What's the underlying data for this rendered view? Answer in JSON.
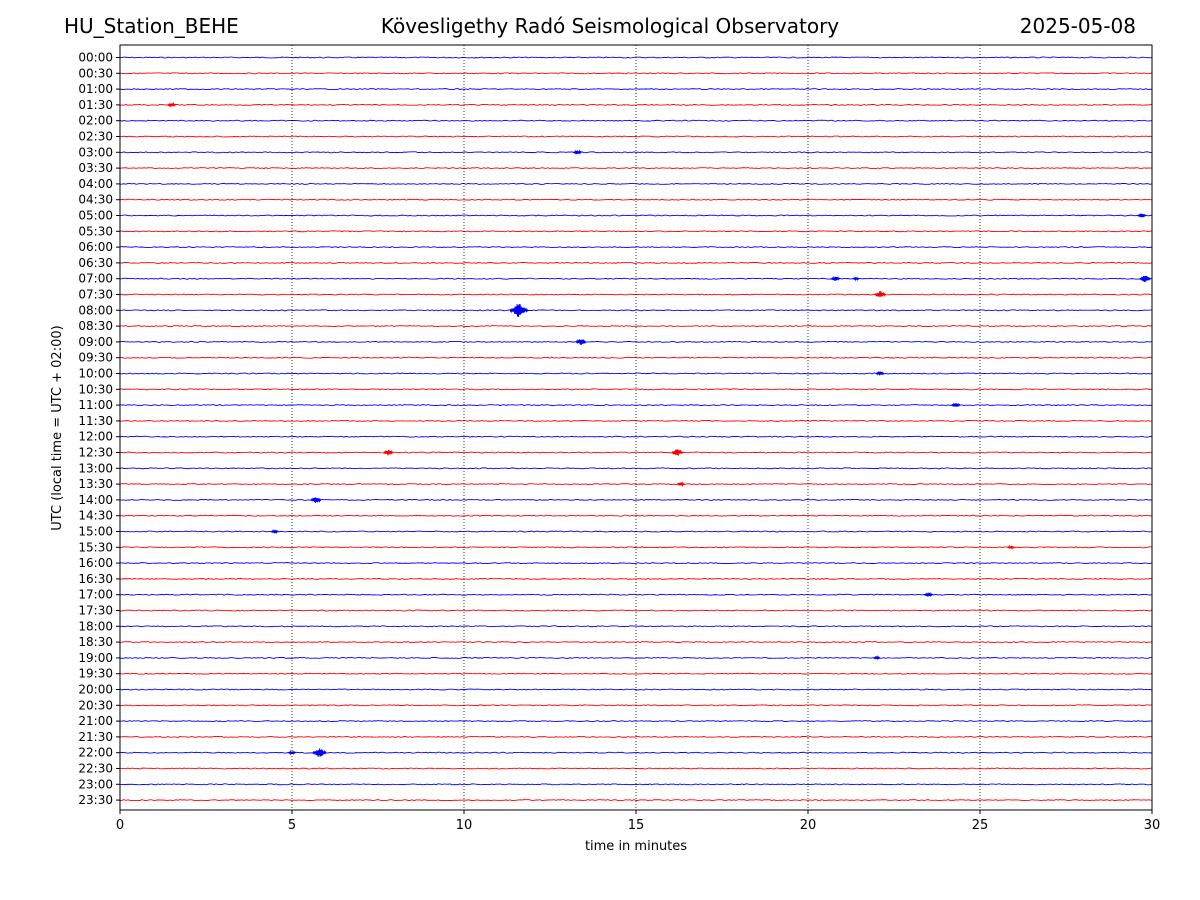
{
  "header": {
    "station": "HU_Station_BEHE",
    "title": "Kövesligethy Radó Seismological Observatory",
    "date": "2025-05-08"
  },
  "chart_data": {
    "type": "line",
    "title": "Kövesligethy Radó Seismological Observatory",
    "xlabel": "time in minutes",
    "ylabel": "UTC (local time = UTC + 02:00)",
    "xlim": [
      0,
      30
    ],
    "xticks": [
      0,
      5,
      10,
      15,
      20,
      25,
      30
    ],
    "vertical_gridlines": [
      5,
      10,
      15,
      20,
      25
    ],
    "grid": "dotted vertical",
    "trace_colors": [
      "#0000ff",
      "#ff0000"
    ],
    "rows": [
      "00:00",
      "00:30",
      "01:00",
      "01:30",
      "02:00",
      "02:30",
      "03:00",
      "03:30",
      "04:00",
      "04:30",
      "05:00",
      "05:30",
      "06:00",
      "06:30",
      "07:00",
      "07:30",
      "08:00",
      "08:30",
      "09:00",
      "09:30",
      "10:00",
      "10:30",
      "11:00",
      "11:30",
      "12:00",
      "12:30",
      "13:00",
      "13:30",
      "14:00",
      "14:30",
      "15:00",
      "15:30",
      "16:00",
      "16:30",
      "17:00",
      "17:30",
      "18:00",
      "18:30",
      "19:00",
      "19:30",
      "20:00",
      "20:30",
      "21:00",
      "21:30",
      "22:00",
      "22:30",
      "23:00",
      "23:30"
    ],
    "events": [
      {
        "row": "01:30",
        "minute": 1.5,
        "amp": 0.3
      },
      {
        "row": "03:00",
        "minute": 13.3,
        "amp": 0.3
      },
      {
        "row": "05:00",
        "minute": 29.7,
        "amp": 0.3
      },
      {
        "row": "07:00",
        "minute": 20.8,
        "amp": 0.35
      },
      {
        "row": "07:00",
        "minute": 21.4,
        "amp": 0.2
      },
      {
        "row": "07:00",
        "minute": 29.8,
        "amp": 0.5
      },
      {
        "row": "07:30",
        "minute": 22.1,
        "amp": 0.5
      },
      {
        "row": "08:00",
        "minute": 11.6,
        "amp": 1.0
      },
      {
        "row": "09:00",
        "minute": 13.4,
        "amp": 0.45
      },
      {
        "row": "10:00",
        "minute": 22.1,
        "amp": 0.3
      },
      {
        "row": "11:00",
        "minute": 24.3,
        "amp": 0.35
      },
      {
        "row": "12:30",
        "minute": 7.8,
        "amp": 0.4
      },
      {
        "row": "12:30",
        "minute": 16.2,
        "amp": 0.5
      },
      {
        "row": "13:30",
        "minute": 16.3,
        "amp": 0.25
      },
      {
        "row": "14:00",
        "minute": 5.7,
        "amp": 0.45
      },
      {
        "row": "15:00",
        "minute": 4.5,
        "amp": 0.25
      },
      {
        "row": "15:30",
        "minute": 25.9,
        "amp": 0.2
      },
      {
        "row": "17:00",
        "minute": 23.5,
        "amp": 0.3
      },
      {
        "row": "19:00",
        "minute": 22.0,
        "amp": 0.2
      },
      {
        "row": "22:00",
        "minute": 5.0,
        "amp": 0.25
      },
      {
        "row": "22:00",
        "minute": 5.8,
        "amp": 0.7
      }
    ]
  }
}
